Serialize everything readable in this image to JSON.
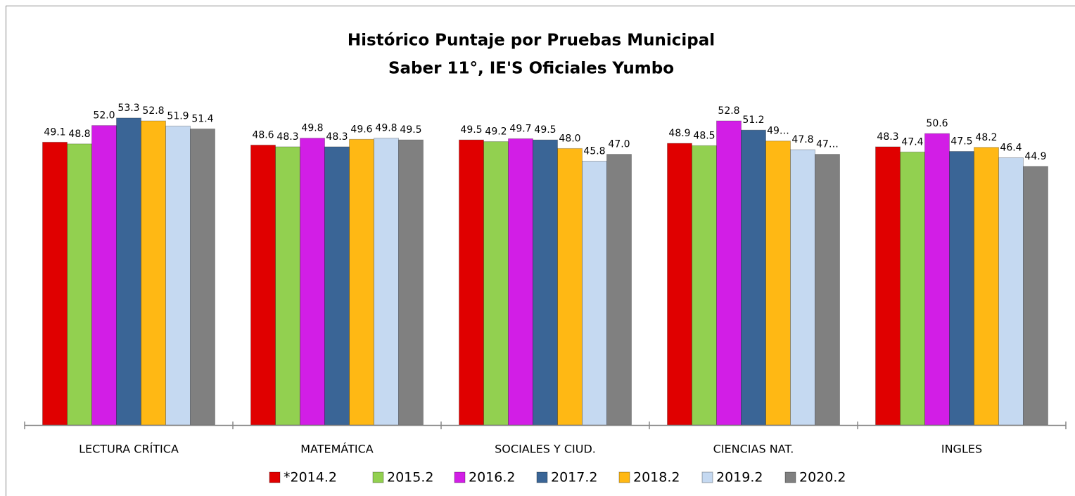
{
  "chart_data": {
    "type": "bar",
    "title": [
      "Histórico Puntaje por Pruebas Municipal",
      "Saber 11°, IE'S Oficiales Yumbo"
    ],
    "categories": [
      "LECTURA CRÍTICA",
      "MATEMÁTICA",
      "SOCIALES Y CIUD.",
      "CIENCIAS NAT.",
      "INGLES"
    ],
    "ylim": [
      0,
      60
    ],
    "series": [
      {
        "name": "*2014.2",
        "color": "#e00000",
        "values": [
          49.1,
          48.6,
          49.5,
          48.9,
          48.3
        ],
        "value_labels": [
          "49.1",
          "48.6",
          "49.5",
          "48.9",
          "48.3"
        ]
      },
      {
        "name": "2015.2",
        "color": "#92d050",
        "values": [
          48.8,
          48.3,
          49.2,
          48.5,
          47.4
        ],
        "value_labels": [
          "48.8",
          "48.3",
          "49.2",
          "48.5",
          "47.4"
        ]
      },
      {
        "name": "2016.2",
        "color": "#d21ee6",
        "values": [
          52.0,
          49.8,
          49.7,
          52.8,
          50.6
        ],
        "value_labels": [
          "52.0",
          "49.8",
          "49.7",
          "52.8",
          "50.6"
        ]
      },
      {
        "name": "2017.2",
        "color": "#3a6596",
        "values": [
          53.3,
          48.3,
          49.5,
          51.2,
          47.5
        ],
        "value_labels": [
          "53.3",
          "48.3",
          "49.5",
          "51.2",
          "47.5"
        ]
      },
      {
        "name": "2018.2",
        "color": "#ffb814",
        "values": [
          52.8,
          49.6,
          48.0,
          49.3,
          48.2
        ],
        "value_labels": [
          "52.8",
          "49.6",
          "48.0",
          "49…",
          "48.2"
        ]
      },
      {
        "name": "2019.2",
        "color": "#c5d9f1",
        "values": [
          51.9,
          49.8,
          45.8,
          47.8,
          46.4
        ],
        "value_labels": [
          "51.9",
          "49.8",
          "45.8",
          "47.8",
          "46.4"
        ]
      },
      {
        "name": "2020.2",
        "color": "#808080",
        "values": [
          51.4,
          49.5,
          47.0,
          47.0,
          44.9
        ],
        "value_labels": [
          "51.4",
          "49.5",
          "47.0",
          "47…",
          "44.9"
        ]
      }
    ]
  }
}
